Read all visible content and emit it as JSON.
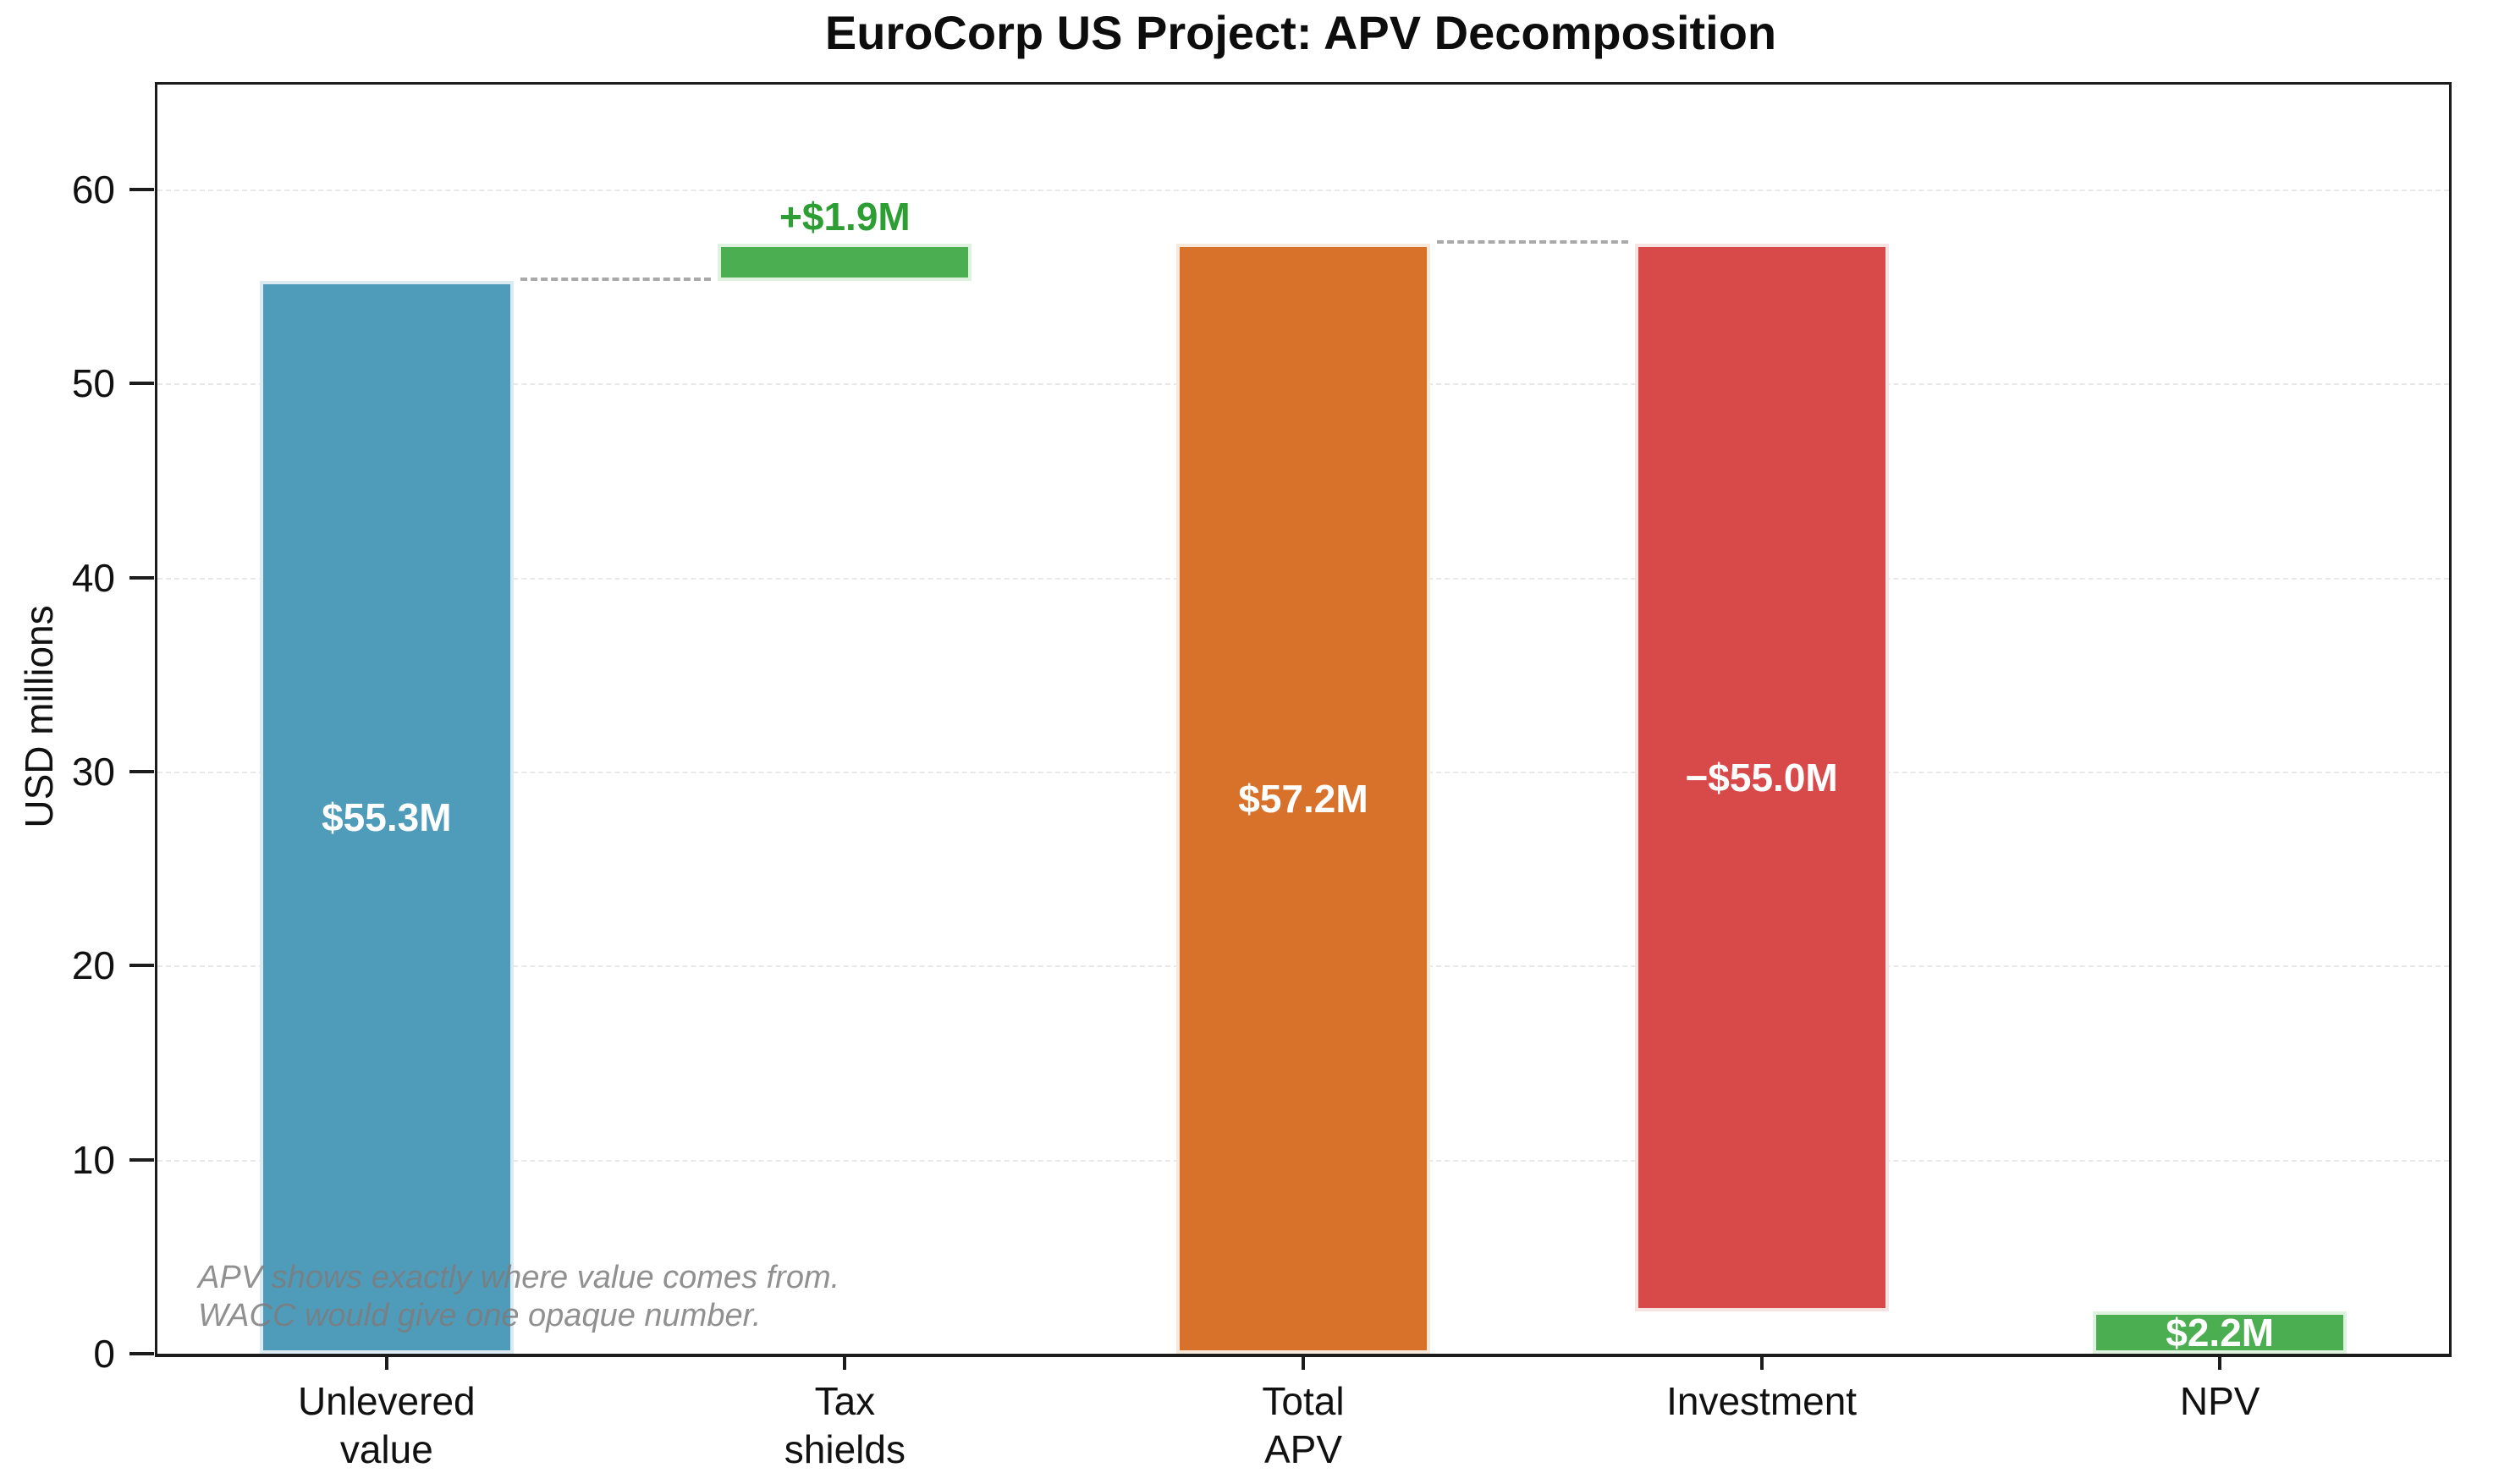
{
  "chart_data": {
    "type": "bar",
    "subtype": "waterfall",
    "title": "EuroCorp US Project: APV Decomposition",
    "xlabel": "",
    "ylabel": "USD millions",
    "ylim": [
      0,
      65.4
    ],
    "yticks": [
      0,
      10,
      20,
      30,
      40,
      50,
      60
    ],
    "grid": {
      "axis": "y",
      "style": "dashed",
      "color": "#e8e8e8"
    },
    "legend": "none",
    "bar_width_frac": 0.554,
    "categories": [
      "Unlevered value",
      "Tax shields",
      "Total APV",
      "Investment",
      "NPV"
    ],
    "bars": [
      {
        "id": "unlevered-value",
        "category_lines": [
          "Unlevered",
          "value"
        ],
        "start": 0,
        "end": 55.3,
        "value": 55.3,
        "color": "#4e9cba",
        "edge_color": "#dceaf2",
        "label": "$55.3M",
        "label_pos": "inside",
        "label_color": "#ffffff"
      },
      {
        "id": "tax-shields",
        "category_lines": [
          "Tax",
          "shields"
        ],
        "start": 55.3,
        "end": 57.2,
        "value": 1.9,
        "color": "#4bae50",
        "edge_color": "#dff1df",
        "label": "+$1.9M",
        "label_pos": "above",
        "label_color": "#2d9e33"
      },
      {
        "id": "total-apv",
        "category_lines": [
          "Total",
          "APV"
        ],
        "start": 0,
        "end": 57.2,
        "value": 57.2,
        "color": "#d8722a",
        "edge_color": "#f7e8dc",
        "label": "$57.2M",
        "label_pos": "inside",
        "label_color": "#ffffff"
      },
      {
        "id": "investment",
        "category_lines": [
          "Investment"
        ],
        "start": 2.2,
        "end": 57.2,
        "value": -55.0,
        "color": "#d84a4a",
        "edge_color": "#f8e3e3",
        "label": "−$55.0M",
        "label_pos": "inside",
        "label_color": "#ffffff"
      },
      {
        "id": "npv",
        "category_lines": [
          "NPV"
        ],
        "start": 0,
        "end": 2.2,
        "value": 2.2,
        "color": "#4bae50",
        "edge_color": "#dff1df",
        "label": "$2.2M",
        "label_pos": "inside",
        "label_color": "#ffffff"
      }
    ],
    "connectors": [
      {
        "from": 0,
        "to": 1,
        "level": 55.3,
        "color": "#a9a9a9"
      },
      {
        "from": 2,
        "to": 3,
        "level": 57.2,
        "color": "#a9a9a9"
      }
    ],
    "annotation": {
      "lines": [
        "APV shows exactly where value comes from.",
        "WACC would give one opaque number."
      ],
      "color": "#7d7d7d",
      "style": "italic"
    }
  }
}
